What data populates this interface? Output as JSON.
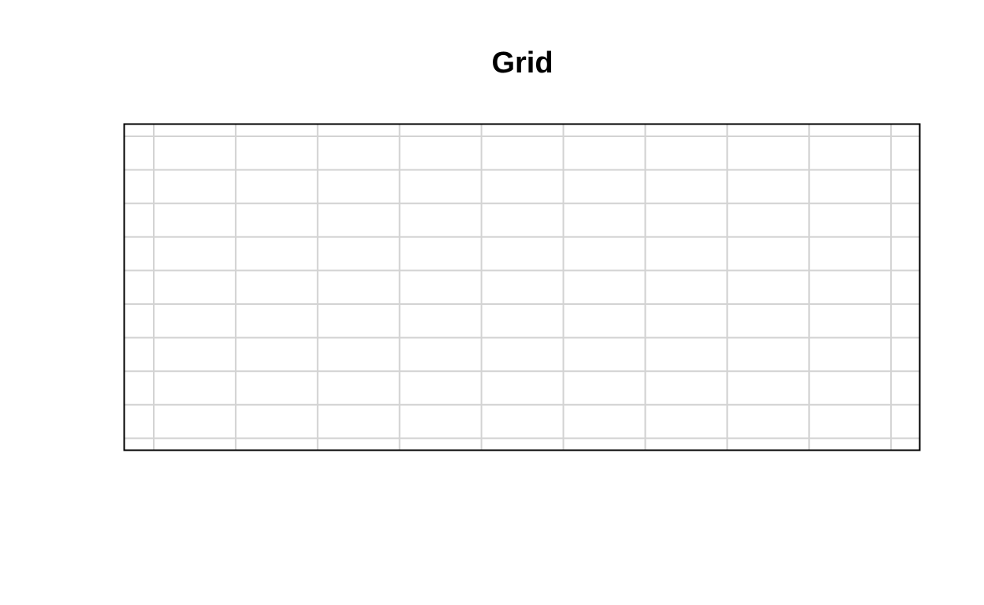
{
  "chart_data": {
    "type": "scatter",
    "title": "Grid",
    "xlabel": "",
    "ylabel": "",
    "grid": true,
    "vertical_gridlines": 10,
    "horizontal_gridlines": 10,
    "colors": {
      "background": "#ffffff",
      "frame": "#000000",
      "grid": "#d3d3d3",
      "title": "#000000"
    }
  }
}
